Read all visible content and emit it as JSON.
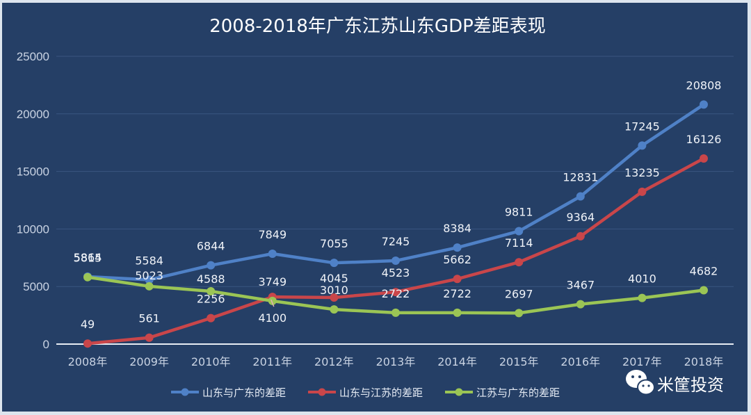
{
  "chart_data": {
    "type": "line",
    "title": "2008-2018年广东江苏山东GDP差距表现",
    "xlabel": "",
    "ylabel": "",
    "categories": [
      "2008年",
      "2009年",
      "2010年",
      "2011年",
      "2012年",
      "2013年",
      "2014年",
      "2015年",
      "2016年",
      "2017年",
      "2018年"
    ],
    "ylim": [
      0,
      25000
    ],
    "yticks": [
      0,
      5000,
      10000,
      15000,
      20000,
      25000
    ],
    "grid": true,
    "legend_position": "bottom",
    "series": [
      {
        "name": "山东与广东的差距",
        "color": "#4f81c7",
        "values": [
          5864,
          5584,
          6844,
          7849,
          7055,
          7245,
          8384,
          9811,
          12831,
          17245,
          20808
        ]
      },
      {
        "name": "山东与江苏的差距",
        "color": "#c9464a",
        "values": [
          49,
          561,
          2256,
          4100,
          4045,
          4523,
          5662,
          7114,
          9364,
          13235,
          16126
        ]
      },
      {
        "name": "江苏与广东的差距",
        "color": "#9bc555",
        "values": [
          5815,
          5023,
          4588,
          3749,
          3010,
          2722,
          2722,
          2697,
          3467,
          4010,
          4682
        ]
      }
    ]
  },
  "watermark": {
    "icon": "wechat-icon",
    "text": "米筐投资"
  }
}
